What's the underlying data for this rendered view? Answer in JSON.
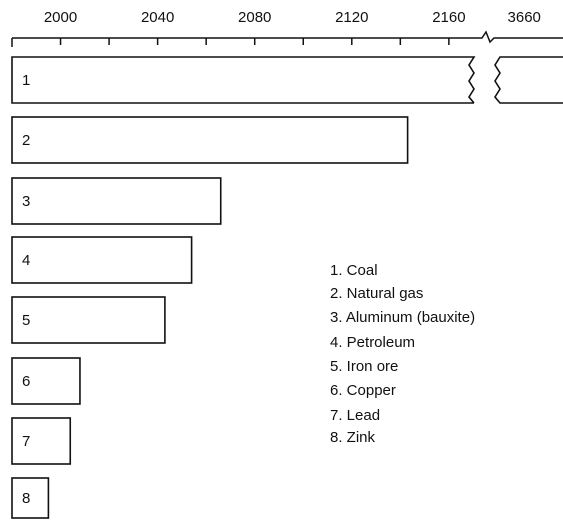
{
  "chart_data": {
    "type": "bar",
    "orientation": "horizontal",
    "categories": [
      "1",
      "2",
      "3",
      "4",
      "5",
      "6",
      "7",
      "8"
    ],
    "values": [
      3676,
      2143,
      2066,
      2054,
      2043,
      2008,
      2004,
      1995
    ],
    "color": "#ffffff",
    "xlim": [
      1980,
      2172
    ],
    "xticks": [
      2000,
      2040,
      2080,
      2120,
      2160
    ],
    "minor_xticks": [
      1980,
      2020,
      2060,
      2100,
      2140
    ],
    "x2lim": [
      3650,
      3676
    ],
    "x2ticks": [
      3660
    ],
    "legend": [
      "1. Coal",
      "2. Natural gas",
      "3. Aluminum (bauxite)",
      "4. Petroleum",
      "5. Iron ore",
      "6. Copper",
      "7. Lead",
      "8. Zink"
    ]
  }
}
